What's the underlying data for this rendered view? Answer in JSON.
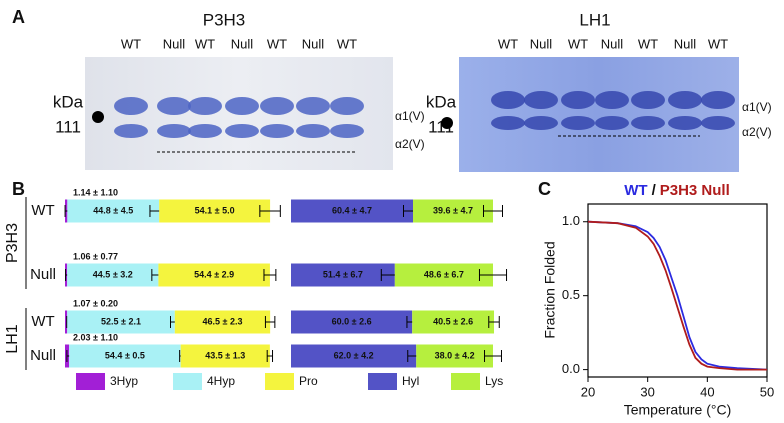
{
  "panels": [
    "A",
    "B",
    "C"
  ],
  "gels": [
    {
      "title": "P3H3",
      "lanes": [
        "WT",
        "Null",
        "WT",
        "Null",
        "WT",
        "Null",
        "WT"
      ],
      "unit": "kDa",
      "marker": "111",
      "bands": [
        "α1(V)",
        "α2(V)"
      ]
    },
    {
      "title": "LH1",
      "lanes": [
        "WT",
        "Null",
        "WT",
        "Null",
        "WT",
        "Null",
        "WT"
      ],
      "unit": "kDa",
      "marker": "111",
      "bands": [
        "α1(V)",
        "α2(V)"
      ]
    }
  ],
  "chart_data": [
    {
      "type": "bar",
      "orientation": "horizontal",
      "stacked": true,
      "groups": [
        "P3H3",
        "LH1"
      ],
      "categories": [
        "WT",
        "Null",
        "WT",
        "Null"
      ],
      "series": [
        {
          "name": "3Hyp",
          "color": "#a21fd6",
          "values": [
            1.14,
            1.06,
            1.07,
            2.03
          ],
          "errors": [
            1.1,
            0.77,
            0.2,
            1.1
          ],
          "value_labels": [
            "1.14 ± 1.10",
            "1.06 ± 0.77",
            "1.07 ± 0.20",
            "2.03 ± 1.10"
          ]
        },
        {
          "name": "4Hyp",
          "color": "#a9f1f5",
          "values": [
            44.8,
            44.5,
            52.5,
            54.4
          ],
          "errors": [
            4.5,
            3.2,
            2.1,
            0.5
          ],
          "value_labels": [
            "44.8 ± 4.5",
            "44.5 ± 3.2",
            "52.5 ± 2.1",
            "54.4 ± 0.5"
          ]
        },
        {
          "name": "Pro",
          "color": "#f4f43e",
          "values": [
            54.1,
            54.4,
            46.5,
            43.5
          ],
          "errors": [
            5.0,
            2.9,
            2.3,
            1.3
          ],
          "value_labels": [
            "54.1 ± 5.0",
            "54.4 ± 2.9",
            "46.5 ± 2.3",
            "43.5 ± 1.3"
          ]
        }
      ]
    },
    {
      "type": "bar",
      "orientation": "horizontal",
      "stacked": true,
      "categories": [
        "WT",
        "Null",
        "WT",
        "Null"
      ],
      "series": [
        {
          "name": "Hyl",
          "color": "#5353c6",
          "values": [
            60.4,
            51.4,
            60.0,
            62.0
          ],
          "errors": [
            4.7,
            6.7,
            2.6,
            4.2
          ],
          "value_labels": [
            "60.4 ± 4.7",
            "51.4 ± 6.7",
            "60.0 ± 2.6",
            "62.0 ± 4.2"
          ]
        },
        {
          "name": "Lys",
          "color": "#b6ef3e",
          "values": [
            39.6,
            48.6,
            40.5,
            38.0
          ],
          "errors": [
            4.7,
            6.7,
            2.6,
            4.2
          ],
          "value_labels": [
            "39.6 ± 4.7",
            "48.6 ± 6.7",
            "40.5 ± 2.6",
            "38.0 ± 4.2"
          ]
        }
      ]
    },
    {
      "type": "line",
      "legend_separator": "/",
      "x_label": "Temperature (°C)",
      "y_label": "Fraction Folded",
      "x": [
        20,
        25,
        28,
        30,
        31,
        32,
        33,
        34,
        35,
        36,
        37,
        38,
        39,
        40,
        42,
        45,
        50
      ],
      "series": [
        {
          "name": "WT",
          "color": "#2b2be0",
          "values": [
            1.0,
            0.99,
            0.97,
            0.93,
            0.89,
            0.83,
            0.74,
            0.62,
            0.5,
            0.36,
            0.22,
            0.12,
            0.07,
            0.04,
            0.02,
            0.01,
            0.0
          ]
        },
        {
          "name": "P3H3 Null",
          "color": "#b01c1c",
          "values": [
            1.0,
            0.99,
            0.96,
            0.9,
            0.85,
            0.77,
            0.67,
            0.55,
            0.42,
            0.29,
            0.17,
            0.08,
            0.04,
            0.02,
            0.01,
            0.0,
            0.0
          ]
        }
      ],
      "xlim": [
        20,
        50
      ],
      "xticks": [
        20,
        30,
        40,
        50
      ],
      "ylim": [
        -0.05,
        1.12
      ],
      "yticks": [
        {
          "value": 0,
          "label": "0.0"
        },
        0.5,
        {
          "value": 1,
          "label": "1.0"
        }
      ]
    }
  ]
}
